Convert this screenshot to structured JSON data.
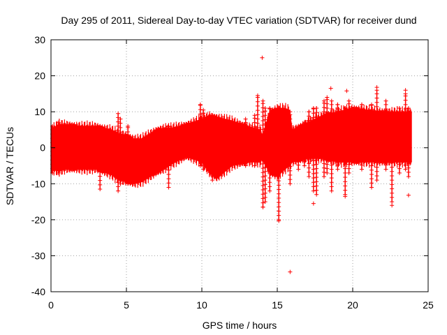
{
  "chart_data": {
    "type": "scatter",
    "title": "Day 295 of 2011, Sidereal Day-to-day VTEC variation (SDTVAR) for receiver dund",
    "xlabel": "GPS time / hours",
    "ylabel": "SDTVAR / TECUs",
    "xlim": [
      0,
      25
    ],
    "ylim": [
      -40,
      30
    ],
    "x_ticks": [
      0,
      5,
      10,
      15,
      20,
      25
    ],
    "y_ticks": [
      -40,
      -30,
      -20,
      -10,
      0,
      10,
      20,
      30
    ],
    "x_tick_labels": [
      "0",
      "5",
      "10",
      "15",
      "20",
      "25"
    ],
    "y_tick_labels": [
      "-40",
      "-30",
      "-20",
      "-10",
      "0",
      "10",
      "20",
      "30"
    ],
    "grid": true,
    "marker": "+",
    "color": "#ff0000",
    "series": [
      {
        "name": "SDTVAR",
        "envelope": {
          "x": [
            0,
            0.5,
            1,
            2,
            3,
            4,
            4.5,
            5,
            5.5,
            6,
            7,
            7.5,
            8,
            9,
            10,
            10.5,
            11,
            12,
            13,
            13.9,
            14,
            14.5,
            15,
            15.5,
            15.8,
            16,
            17,
            18,
            19,
            20,
            21,
            22,
            23,
            23.9
          ],
          "upper": [
            5,
            6.5,
            6.5,
            6,
            6,
            5,
            4,
            3.5,
            2.5,
            2.5,
            5,
            5.5,
            5.5,
            6.5,
            8,
            9,
            8.5,
            7.5,
            6,
            5,
            3,
            10,
            11,
            11,
            10.5,
            5,
            7,
            9,
            10,
            11,
            10.5,
            10,
            10,
            10
          ],
          "lower": [
            -6,
            -6.5,
            -6,
            -6,
            -6,
            -7.5,
            -9,
            -9.5,
            -10,
            -9.5,
            -7,
            -6,
            -4.5,
            -2.5,
            -4,
            -7,
            -8.5,
            -5,
            -4,
            -4,
            -3,
            -7,
            -8,
            -6,
            -5,
            -4,
            -3,
            -3,
            -4,
            -4,
            -4,
            -4,
            -4,
            -4
          ]
        },
        "spikes": [
          {
            "x": 0.1,
            "min": -7,
            "max": 6
          },
          {
            "x": 0.5,
            "min": -7,
            "max": 7
          },
          {
            "x": 3.25,
            "min": -11.5,
            "max": 6
          },
          {
            "x": 4.45,
            "min": -12,
            "max": 9.5
          },
          {
            "x": 4.6,
            "min": -10,
            "max": 8
          },
          {
            "x": 5.1,
            "min": -10,
            "max": 6
          },
          {
            "x": 7.8,
            "min": -11,
            "max": 6
          },
          {
            "x": 9.9,
            "min": -5,
            "max": 12
          },
          {
            "x": 10.1,
            "min": -6,
            "max": 10.5
          },
          {
            "x": 10.7,
            "min": -9,
            "max": 9
          },
          {
            "x": 12.9,
            "min": -5,
            "max": 8
          },
          {
            "x": 13.5,
            "min": -5,
            "max": 9
          },
          {
            "x": 13.7,
            "min": -4,
            "max": 14.5
          },
          {
            "x": 14.05,
            "min": -16.5,
            "max": 13
          },
          {
            "x": 14.2,
            "min": -15,
            "max": 11
          },
          {
            "x": 14.5,
            "min": -12,
            "max": 11
          },
          {
            "x": 15.1,
            "min": -20,
            "max": 11
          },
          {
            "x": 15.85,
            "min": -10,
            "max": 10
          },
          {
            "x": 16.4,
            "min": -6,
            "max": 5
          },
          {
            "x": 16.8,
            "min": -5,
            "max": 7
          },
          {
            "x": 17.1,
            "min": -8,
            "max": 10
          },
          {
            "x": 17.4,
            "min": -12,
            "max": 11
          },
          {
            "x": 17.6,
            "min": -13,
            "max": 11
          },
          {
            "x": 18.1,
            "min": -8,
            "max": 13
          },
          {
            "x": 18.3,
            "min": -7,
            "max": 14
          },
          {
            "x": 18.6,
            "min": -12,
            "max": 13
          },
          {
            "x": 19.0,
            "min": -6,
            "max": 12
          },
          {
            "x": 19.5,
            "min": -13,
            "max": 11
          },
          {
            "x": 19.75,
            "min": -7,
            "max": 13
          },
          {
            "x": 20.6,
            "min": -6,
            "max": 12
          },
          {
            "x": 21.25,
            "min": -11,
            "max": 12
          },
          {
            "x": 21.6,
            "min": -9,
            "max": 16
          },
          {
            "x": 22.2,
            "min": -6,
            "max": 13
          },
          {
            "x": 22.6,
            "min": -15,
            "max": 10
          },
          {
            "x": 23.1,
            "min": -7,
            "max": 11
          },
          {
            "x": 23.5,
            "min": -6,
            "max": 15
          },
          {
            "x": 23.7,
            "min": -8,
            "max": 11
          }
        ],
        "outliers": [
          {
            "x": 14.0,
            "y": 25
          },
          {
            "x": 14.05,
            "y": -16.5
          },
          {
            "x": 15.1,
            "y": -20.3
          },
          {
            "x": 15.85,
            "y": -34.5
          },
          {
            "x": 17.4,
            "y": -15.5
          },
          {
            "x": 18.55,
            "y": 16.5
          },
          {
            "x": 19.6,
            "y": 15.8
          },
          {
            "x": 19.5,
            "y": -13.5
          },
          {
            "x": 21.6,
            "y": 16.8
          },
          {
            "x": 22.6,
            "y": -16
          },
          {
            "x": 23.5,
            "y": 16
          },
          {
            "x": 23.7,
            "y": -13.2
          }
        ]
      }
    ]
  }
}
